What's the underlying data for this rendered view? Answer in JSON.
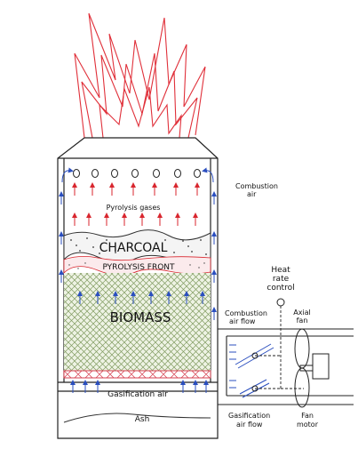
{
  "labels": {
    "pyrolysis_gases": "Pyrolysis gases",
    "charcoal": "CHARCOAL",
    "pyrolysis_front": "PYROLYSIS FRONT",
    "biomass": "BIOMASS",
    "gasification_air": "Gasification air",
    "ash": "Ash",
    "combustion_air_1": "Combustion",
    "combustion_air_2": "air",
    "heat_rate_1": "Heat",
    "heat_rate_2": "rate",
    "heat_rate_3": "control",
    "combustion_air_flow_1": "Combustion",
    "combustion_air_flow_2": "air flow",
    "axial_fan_1": "Axial",
    "axial_fan_2": "fan",
    "gasification_air_flow_1": "Gasification",
    "gasification_air_flow_2": "air flow",
    "fan_motor_1": "Fan",
    "fan_motor_2": "motor"
  },
  "colors": {
    "flame": "#e0303a",
    "arrow_red": "#d8262e",
    "arrow_blue": "#2b4fbf",
    "biomass_hatch": "#7f9a5f",
    "biomass_fill": "#eef3e4",
    "grate": "#d64050",
    "line": "#222222"
  }
}
